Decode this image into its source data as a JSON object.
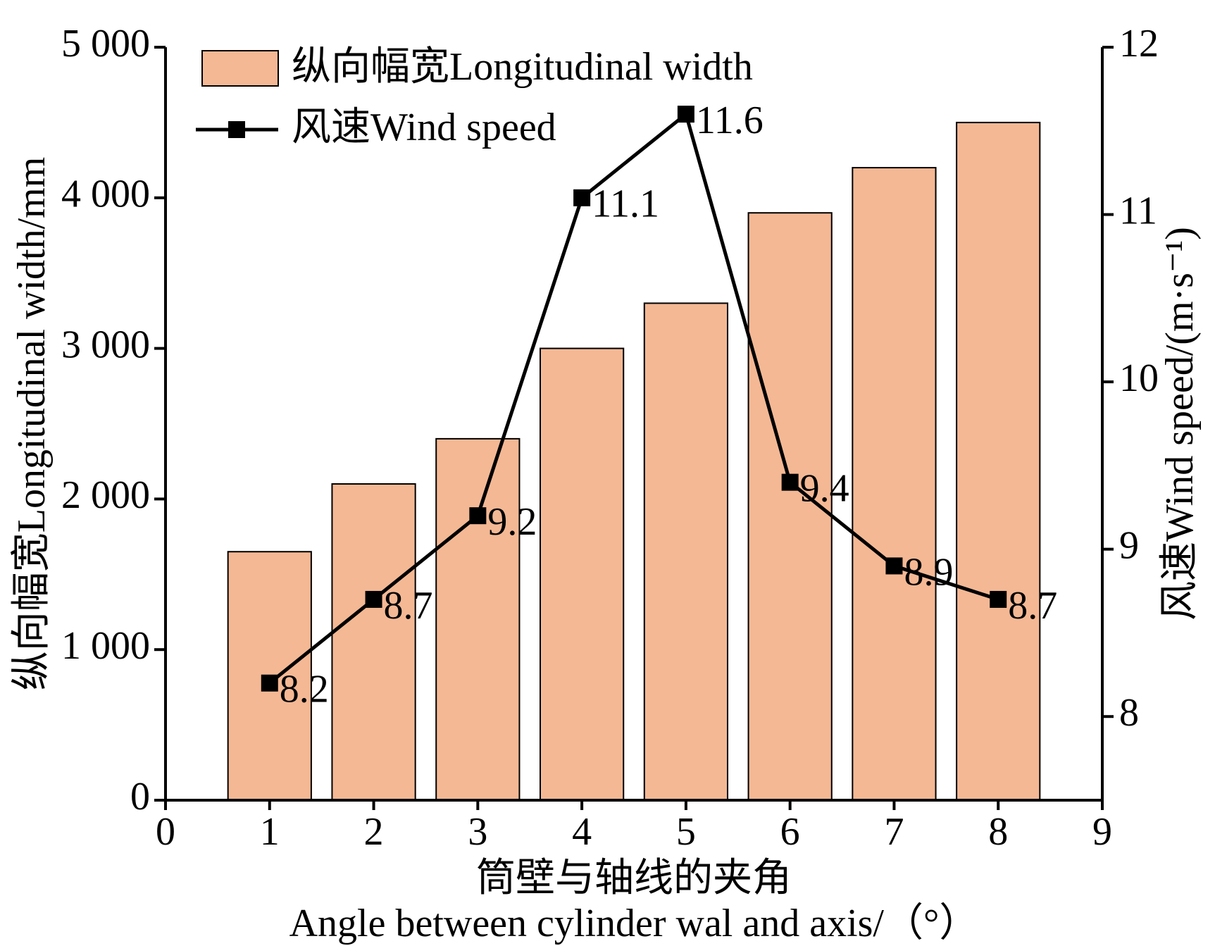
{
  "chart_data": {
    "type": "bar-line",
    "x": [
      1,
      2,
      3,
      4,
      5,
      6,
      7,
      8
    ],
    "xlim": [
      0,
      9
    ],
    "xticks": [
      0,
      1,
      2,
      3,
      4,
      5,
      6,
      7,
      8,
      9
    ],
    "ylim": [
      0,
      5000
    ],
    "yticks": [
      0,
      {
        "value": 1000,
        "label": "1 000"
      },
      {
        "value": 2000,
        "label": "2 000"
      },
      {
        "value": 3000,
        "label": "3 000"
      },
      {
        "value": 4000,
        "label": "4 000"
      },
      {
        "value": 5000,
        "label": "5 000"
      }
    ],
    "y2lim": [
      7.5,
      12
    ],
    "y2ticks": [
      8,
      9,
      10,
      11,
      12
    ],
    "ylabel": "纵向幅宽Longitudinal width/mm",
    "y2label": "风速Wind speed/(m·s⁻¹)",
    "xlabel": [
      "筒壁与轴线的夹角",
      "Angle between cylinder wal and axis/（°）"
    ],
    "series": [
      {
        "name": "纵向幅宽Longitudinal width",
        "type": "bar",
        "color": "#f4b894",
        "values": [
          1650,
          2100,
          2400,
          3000,
          3300,
          3900,
          4200,
          4500
        ]
      },
      {
        "name": "风速Wind speed",
        "type": "line",
        "axis": "y2",
        "color": "#000000",
        "values": [
          8.2,
          8.7,
          9.2,
          11.1,
          11.6,
          9.4,
          8.9,
          8.7
        ]
      }
    ],
    "legend": "upper-left"
  }
}
